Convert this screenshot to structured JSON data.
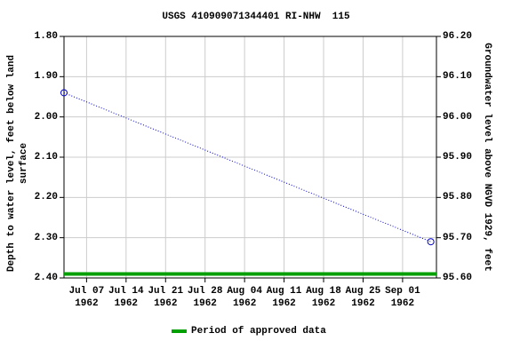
{
  "chart_data": {
    "type": "line",
    "title": "USGS 410909071344401 RI-NHW  115",
    "y_label": "Depth to water level, feet below land\nsurface",
    "y2_label": "Groundwater level above NGVD 1929, feet",
    "x": [
      "1962-07-03",
      "1962-09-06"
    ],
    "xlim": [
      "1962-07-03",
      "1962-09-07"
    ],
    "xticks": [
      {
        "value": "1962-07-07",
        "label": "Jul 07\n1962"
      },
      {
        "value": "1962-07-14",
        "label": "Jul 14\n1962"
      },
      {
        "value": "1962-07-21",
        "label": "Jul 21\n1962"
      },
      {
        "value": "1962-07-28",
        "label": "Jul 28\n1962"
      },
      {
        "value": "1962-08-04",
        "label": "Aug 04\n1962"
      },
      {
        "value": "1962-08-11",
        "label": "Aug 11\n1962"
      },
      {
        "value": "1962-08-18",
        "label": "Aug 18\n1962"
      },
      {
        "value": "1962-08-25",
        "label": "Aug 25\n1962"
      },
      {
        "value": "1962-09-01",
        "label": "Sep 01\n1962"
      }
    ],
    "ylim": [
      1.8,
      2.4
    ],
    "y_inverted": true,
    "yticks": [
      {
        "value": 1.8,
        "label": "1.80"
      },
      {
        "value": 1.9,
        "label": "1.90"
      },
      {
        "value": 2.0,
        "label": "2.00"
      },
      {
        "value": 2.1,
        "label": "2.10"
      },
      {
        "value": 2.2,
        "label": "2.20"
      },
      {
        "value": 2.3,
        "label": "2.30"
      },
      {
        "value": 2.4,
        "label": "2.40"
      }
    ],
    "y2lim": [
      96.2,
      95.6
    ],
    "y2ticks": [
      {
        "value": 96.2,
        "label": "96.20"
      },
      {
        "value": 96.1,
        "label": "96.10"
      },
      {
        "value": 96.0,
        "label": "96.00"
      },
      {
        "value": 95.9,
        "label": "95.90"
      },
      {
        "value": 95.8,
        "label": "95.80"
      },
      {
        "value": 95.7,
        "label": "95.70"
      },
      {
        "value": 95.6,
        "label": "95.60"
      }
    ],
    "grid": true,
    "series": [
      {
        "name": "Depth to water level",
        "color": "#0000cc",
        "x": [
          "1962-07-03",
          "1962-09-06"
        ],
        "values": [
          1.94,
          2.31
        ]
      },
      {
        "name": "Period of approved data",
        "color": "#00a000",
        "x": [
          "1962-07-03",
          "1962-09-07"
        ],
        "values": [
          2.39,
          2.39
        ]
      }
    ]
  }
}
